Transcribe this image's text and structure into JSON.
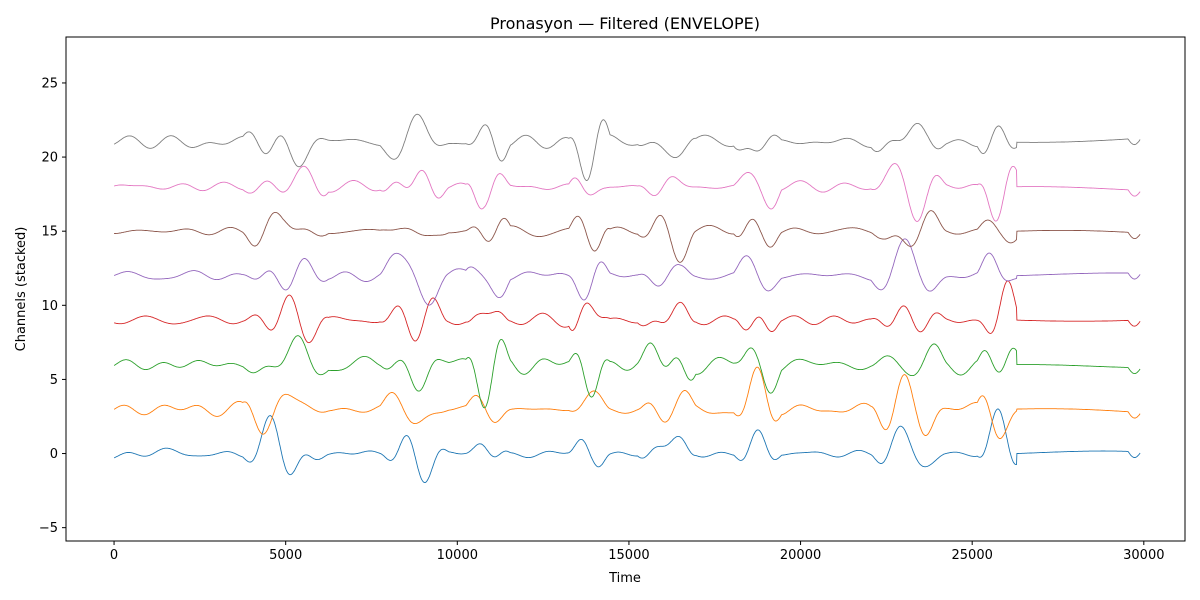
{
  "chart_data": {
    "type": "line",
    "title": "Pronasyon — Filtered (ENVELOPE)",
    "xlabel": "Time",
    "ylabel": "Channels (stacked)",
    "xlim": [
      -1400,
      31200
    ],
    "ylim": [
      -5.9,
      28.1
    ],
    "x_ticks": [
      0,
      5000,
      10000,
      15000,
      20000,
      25000,
      30000
    ],
    "y_ticks": [
      -5,
      0,
      5,
      10,
      15,
      20,
      25
    ],
    "grid": false,
    "legend": "none",
    "series": [
      {
        "offset": 0,
        "color": "#1f77b4",
        "base_amp": 0.35,
        "burst_amp": 2.4
      },
      {
        "offset": 3,
        "color": "#ff7f0e",
        "base_amp": 0.45,
        "burst_amp": 2.2
      },
      {
        "offset": 6,
        "color": "#2ca02c",
        "base_amp": 0.55,
        "burst_amp": 2.5
      },
      {
        "offset": 9,
        "color": "#d62728",
        "base_amp": 0.35,
        "burst_amp": 2.3
      },
      {
        "offset": 12,
        "color": "#9467bd",
        "base_amp": 0.45,
        "burst_amp": 2.4
      },
      {
        "offset": 15,
        "color": "#8c564b",
        "base_amp": 0.3,
        "burst_amp": 2.2
      },
      {
        "offset": 18,
        "color": "#e377c2",
        "base_amp": 0.3,
        "burst_amp": 2.4
      },
      {
        "offset": 21,
        "color": "#7f7f7f",
        "base_amp": 0.45,
        "burst_amp": 2.6
      }
    ],
    "bursts": [
      [
        4000,
        6000
      ],
      [
        8000,
        9500
      ],
      [
        10500,
        11300
      ],
      [
        13500,
        14200
      ],
      [
        15500,
        16700
      ],
      [
        18300,
        19200
      ],
      [
        22300,
        24000
      ],
      [
        25400,
        26200
      ]
    ],
    "signal_end": 26300,
    "x_end": 29900
  }
}
